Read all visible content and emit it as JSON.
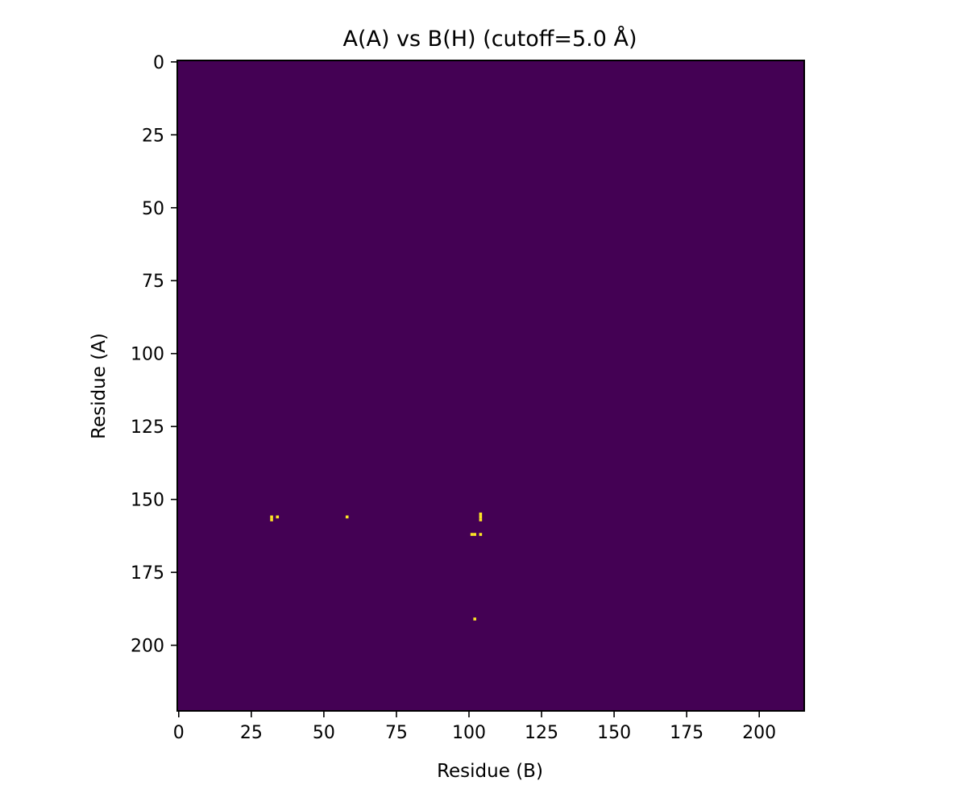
{
  "chart_data": {
    "type": "heatmap",
    "title": "A(A) vs B(H) (cutoff=5.0 Å)",
    "xlabel": "Residue (B)",
    "ylabel": "Residue (A)",
    "xlim": [
      -0.5,
      215.5
    ],
    "ylim": [
      222.5,
      -0.5
    ],
    "x_ticks": [
      0,
      25,
      50,
      75,
      100,
      125,
      150,
      175,
      200
    ],
    "y_ticks": [
      0,
      25,
      50,
      75,
      100,
      125,
      150,
      175,
      200
    ],
    "x_tick_labels": [
      "0",
      "25",
      "50",
      "75",
      "100",
      "125",
      "150",
      "175",
      "200"
    ],
    "y_tick_labels": [
      "0",
      "25",
      "50",
      "75",
      "100",
      "125",
      "150",
      "175",
      "200"
    ],
    "background_value": 0,
    "contact_value": 1,
    "colors": {
      "background": "#440154",
      "contact": "#fde725",
      "frame": "#000000"
    },
    "grid": false,
    "contacts": [
      {
        "x": 32,
        "y": 156
      },
      {
        "x": 32,
        "y": 157
      },
      {
        "x": 34,
        "y": 156
      },
      {
        "x": 58,
        "y": 156
      },
      {
        "x": 101,
        "y": 162
      },
      {
        "x": 102,
        "y": 162
      },
      {
        "x": 104,
        "y": 155
      },
      {
        "x": 104,
        "y": 156
      },
      {
        "x": 104,
        "y": 157
      },
      {
        "x": 104,
        "y": 162
      },
      {
        "x": 102,
        "y": 191
      }
    ]
  }
}
